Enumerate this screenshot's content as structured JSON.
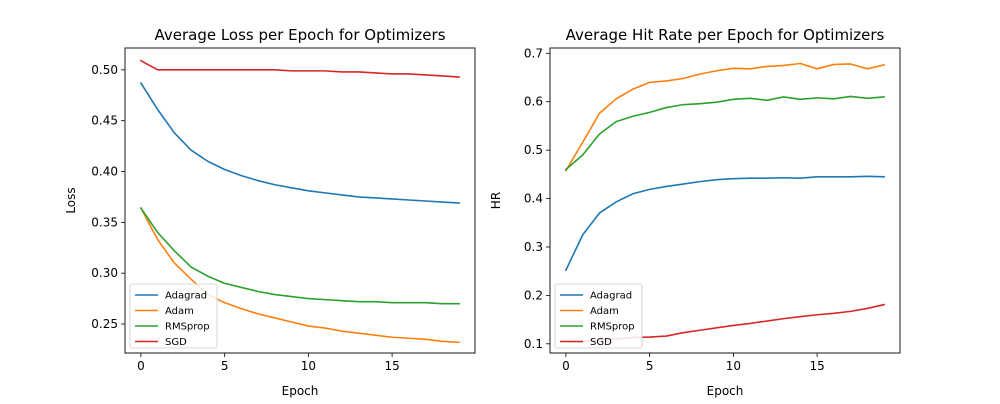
{
  "chart_data": [
    {
      "type": "line",
      "title": "Average Loss per Epoch for Optimizers",
      "xlabel": "Epoch",
      "ylabel": "Loss",
      "xlim": [
        -0.95,
        19.95
      ],
      "ylim": [
        0.2215,
        0.5215
      ],
      "xticks": [
        0,
        5,
        10,
        15
      ],
      "yticks": [
        0.25,
        0.3,
        0.35,
        0.4,
        0.45,
        0.5
      ],
      "ytick_labels": [
        "0.25",
        "0.30",
        "0.35",
        "0.40",
        "0.45",
        "0.50"
      ],
      "legend_position": "lower-left",
      "grid": false,
      "x": [
        0,
        1,
        2,
        3,
        4,
        5,
        6,
        7,
        8,
        9,
        10,
        11,
        12,
        13,
        14,
        15,
        16,
        17,
        18,
        19
      ],
      "series": [
        {
          "name": "Adagrad",
          "color": "#1f77b4",
          "values": [
            0.487,
            0.461,
            0.438,
            0.421,
            0.41,
            0.402,
            0.396,
            0.391,
            0.387,
            0.384,
            0.381,
            0.379,
            0.377,
            0.375,
            0.374,
            0.373,
            0.372,
            0.371,
            0.37,
            0.369
          ]
        },
        {
          "name": "Adam",
          "color": "#ff7f0e",
          "values": [
            0.364,
            0.333,
            0.31,
            0.294,
            0.279,
            0.271,
            0.265,
            0.26,
            0.256,
            0.252,
            0.248,
            0.246,
            0.243,
            0.241,
            0.239,
            0.237,
            0.236,
            0.235,
            0.233,
            0.232
          ]
        },
        {
          "name": "RMSprop",
          "color": "#2ca02c",
          "values": [
            0.364,
            0.34,
            0.322,
            0.306,
            0.297,
            0.29,
            0.286,
            0.282,
            0.279,
            0.277,
            0.275,
            0.274,
            0.273,
            0.272,
            0.272,
            0.271,
            0.271,
            0.271,
            0.27,
            0.27
          ]
        },
        {
          "name": "SGD",
          "color": "#d62728",
          "values": [
            0.509,
            0.5,
            0.5,
            0.5,
            0.5,
            0.5,
            0.5,
            0.5,
            0.5,
            0.499,
            0.499,
            0.499,
            0.498,
            0.498,
            0.497,
            0.496,
            0.496,
            0.495,
            0.494,
            0.493
          ]
        }
      ]
    },
    {
      "type": "line",
      "title": "Average Hit Rate per Epoch for Optimizers",
      "xlabel": "Epoch",
      "ylabel": "HR",
      "xlim": [
        -0.95,
        19.95
      ],
      "ylim": [
        0.081,
        0.711
      ],
      "xticks": [
        0,
        5,
        10,
        15
      ],
      "yticks": [
        0.1,
        0.2,
        0.3,
        0.4,
        0.5,
        0.6,
        0.7
      ],
      "ytick_labels": [
        "0.1",
        "0.2",
        "0.3",
        "0.4",
        "0.5",
        "0.6",
        "0.7"
      ],
      "legend_position": "lower-left",
      "grid": false,
      "x": [
        0,
        1,
        2,
        3,
        4,
        5,
        6,
        7,
        8,
        9,
        10,
        11,
        12,
        13,
        14,
        15,
        16,
        17,
        18,
        19
      ],
      "series": [
        {
          "name": "Adagrad",
          "color": "#1f77b4",
          "values": [
            0.252,
            0.325,
            0.37,
            0.393,
            0.41,
            0.419,
            0.425,
            0.43,
            0.435,
            0.439,
            0.441,
            0.442,
            0.442,
            0.443,
            0.442,
            0.445,
            0.445,
            0.445,
            0.446,
            0.445
          ]
        },
        {
          "name": "Adam",
          "color": "#ff7f0e",
          "values": [
            0.458,
            0.516,
            0.576,
            0.606,
            0.626,
            0.64,
            0.643,
            0.648,
            0.657,
            0.664,
            0.669,
            0.668,
            0.673,
            0.675,
            0.679,
            0.668,
            0.677,
            0.678,
            0.668,
            0.676
          ]
        },
        {
          "name": "RMSprop",
          "color": "#2ca02c",
          "values": [
            0.46,
            0.49,
            0.533,
            0.559,
            0.57,
            0.578,
            0.588,
            0.594,
            0.596,
            0.599,
            0.605,
            0.607,
            0.603,
            0.61,
            0.605,
            0.608,
            0.606,
            0.611,
            0.607,
            0.61
          ]
        },
        {
          "name": "SGD",
          "color": "#d62728",
          "values": [
            0.104,
            0.104,
            0.108,
            0.11,
            0.113,
            0.114,
            0.116,
            0.123,
            0.128,
            0.133,
            0.138,
            0.142,
            0.147,
            0.152,
            0.156,
            0.16,
            0.163,
            0.167,
            0.173,
            0.181
          ]
        }
      ]
    }
  ]
}
